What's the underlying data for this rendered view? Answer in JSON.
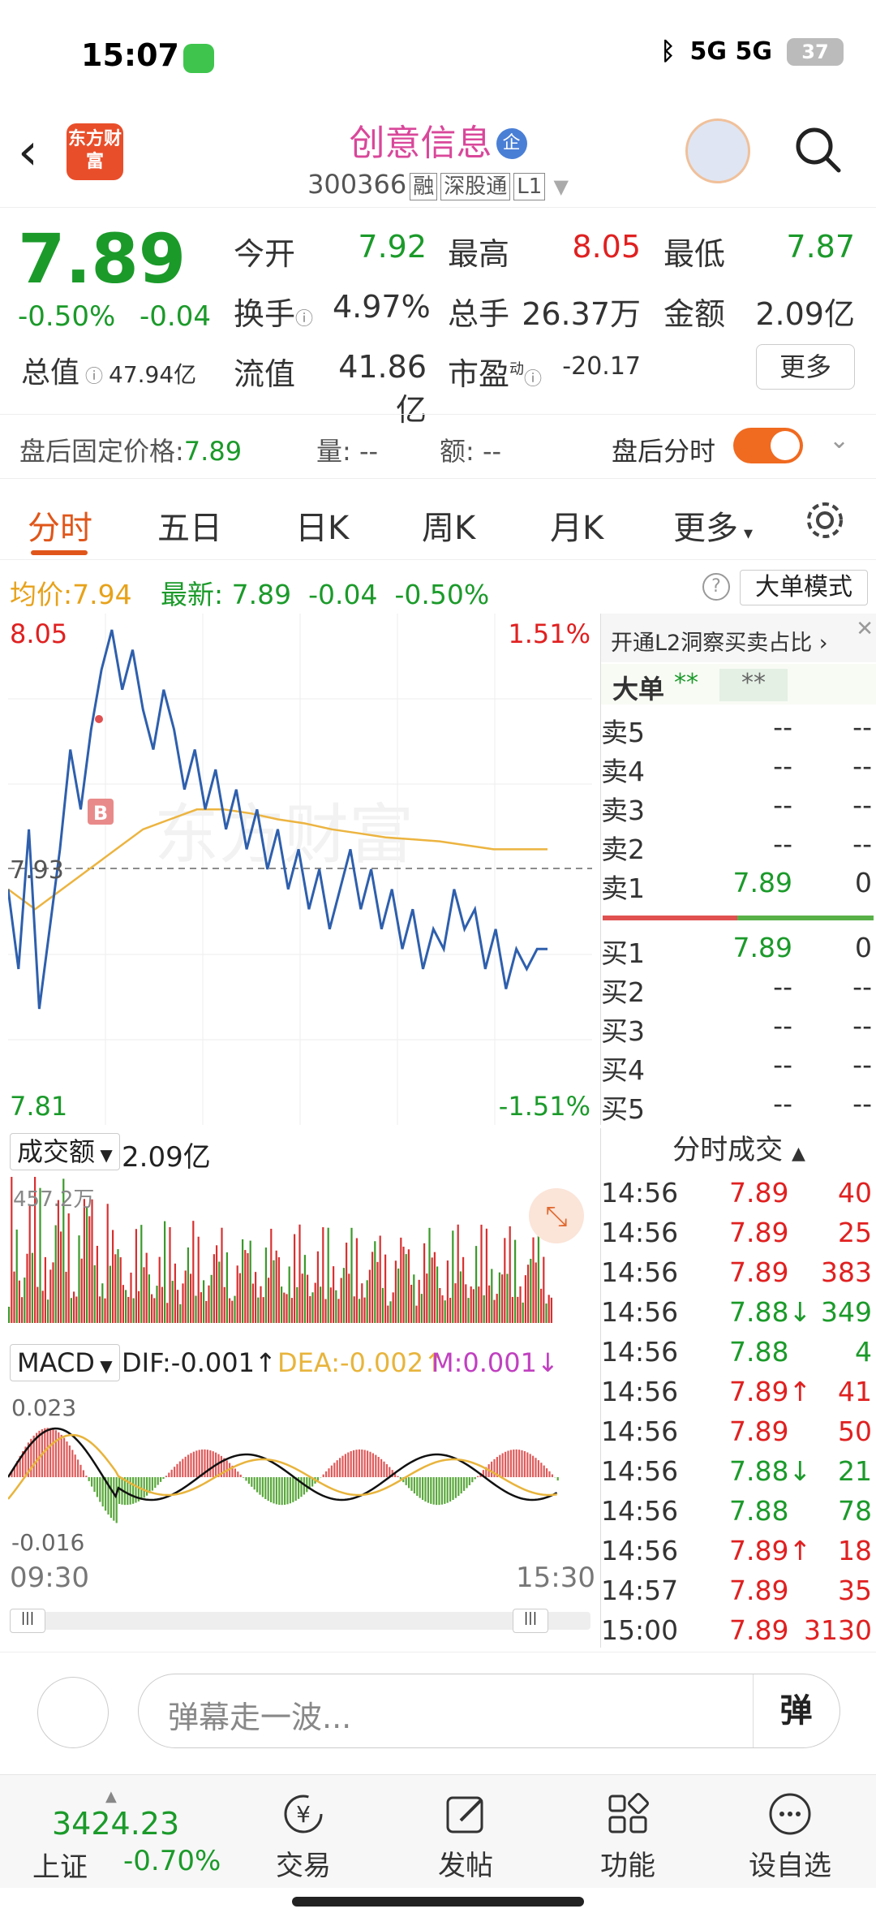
{
  "status_bar": {
    "time": "15:07",
    "signal": "5G 5G",
    "battery": "37"
  },
  "header": {
    "back_icon": "back-arrow-icon",
    "logo_text": "东方财富",
    "stock_name": "创意信息",
    "qi_badge": "企",
    "stock_code": "300366",
    "tags": [
      "融",
      "深股通",
      "L1"
    ],
    "search_icon": "search-icon"
  },
  "quote": {
    "price": "7.89",
    "change_pct": "-0.50%",
    "change": "-0.04",
    "open_label": "今开",
    "open": "7.92",
    "high_label": "最高",
    "high": "8.05",
    "low_label": "最低",
    "low": "7.87",
    "turnover_label": "换手",
    "turnover": "4.97%",
    "volume_label": "总手",
    "volume": "26.37万",
    "amount_label": "金额",
    "amount": "2.09亿",
    "mktcap_label": "总值",
    "mktcap": "47.94亿",
    "float_label": "流值",
    "float_cap": "41.86亿",
    "pe_label": "市盈",
    "pe_sup": "动",
    "pe": "-20.17",
    "more_button": "更多"
  },
  "after_hours": {
    "fixed_price_label": "盘后固定价格:",
    "fixed_price": "7.89",
    "vol_label": "量: --",
    "amt_label": "额: --",
    "toggle_label": "盘后分时"
  },
  "tabs": [
    "分时",
    "五日",
    "日K",
    "周K",
    "月K",
    "更多"
  ],
  "avg_line": {
    "avg_label": "均价:",
    "avg": "7.94",
    "last_label": "最新:",
    "last": "7.89",
    "chg": "-0.04",
    "chg_pct": "-0.50%",
    "big_order_mode": "大单模式"
  },
  "chart_labels": {
    "ymax": "8.05",
    "ymax_pct": "1.51%",
    "ymid": "7.93",
    "ymin": "7.81",
    "ymin_pct": "-1.51%",
    "buy_marker": "B",
    "watermark": "东方财富"
  },
  "chart_data": [
    {
      "type": "line",
      "y_range": [
        7.81,
        8.05
      ],
      "ref_price": 7.93,
      "series": [
        {
          "values": [
            7.92,
            7.88,
            7.95,
            7.86,
            7.9,
            7.94,
            7.99,
            7.96,
            8.0,
            8.03,
            8.05,
            8.02,
            8.04,
            8.01,
            7.99,
            8.02,
            8.0,
            7.97,
            7.99,
            7.96,
            7.98,
            7.95,
            7.97,
            7.94,
            7.96,
            7.93,
            7.95,
            7.92,
            7.94,
            7.91,
            7.93,
            7.9,
            7.92,
            7.94,
            7.91,
            7.93,
            7.9,
            7.92,
            7.89,
            7.91,
            7.88,
            7.9,
            7.89,
            7.92,
            7.9,
            7.91,
            7.88,
            7.9,
            7.87,
            7.89,
            7.88,
            7.89,
            7.89
          ]
        },
        {
          "values": [
            7.92,
            7.91,
            7.92,
            7.93,
            7.94,
            7.95,
            7.955,
            7.96,
            7.96,
            7.958,
            7.955,
            7.953,
            7.95,
            7.948,
            7.946,
            7.945,
            7.944,
            7.942,
            7.94,
            7.94,
            7.94
          ]
        }
      ]
    },
    {
      "type": "bar",
      "label": "成交额",
      "total": "2.09亿",
      "ymax_label": "457.2万"
    },
    {
      "type": "line",
      "label": "MACD",
      "ymax": "0.023",
      "ymin": "-0.016",
      "xstart": "09:30",
      "xend": "15:30"
    }
  ],
  "volume_panel": {
    "selector": "成交额",
    "value": "2.09亿",
    "ymax": "457.2万"
  },
  "macd_panel": {
    "selector": "MACD",
    "dif": "DIF:-0.001↑",
    "dea": "DEA:-0.002↑",
    "m": "M:0.001↓",
    "ymax": "0.023",
    "ymin": "-0.016",
    "xstart": "09:30",
    "xend": "15:30"
  },
  "orderbook": {
    "l2_link": "开通L2洞察买卖占比 ›",
    "big_label": "大单",
    "big_v1": "**",
    "big_v2": "**",
    "sells": [
      {
        "l": "卖5",
        "p": "--",
        "q": "--"
      },
      {
        "l": "卖4",
        "p": "--",
        "q": "--"
      },
      {
        "l": "卖3",
        "p": "--",
        "q": "--"
      },
      {
        "l": "卖2",
        "p": "--",
        "q": "--"
      },
      {
        "l": "卖1",
        "p": "7.89",
        "q": "0"
      }
    ],
    "buys": [
      {
        "l": "买1",
        "p": "7.89",
        "q": "0"
      },
      {
        "l": "买2",
        "p": "--",
        "q": "--"
      },
      {
        "l": "买3",
        "p": "--",
        "q": "--"
      },
      {
        "l": "买4",
        "p": "--",
        "q": "--"
      },
      {
        "l": "买5",
        "p": "--",
        "q": "--"
      }
    ]
  },
  "trades": {
    "title": "分时成交",
    "rows": [
      {
        "t": "14:56",
        "p": "7.89",
        "q": "40",
        "c": "red"
      },
      {
        "t": "14:56",
        "p": "7.89",
        "q": "25",
        "c": "red"
      },
      {
        "t": "14:56",
        "p": "7.89",
        "q": "383",
        "c": "red"
      },
      {
        "t": "14:56",
        "p": "7.88↓",
        "q": "349",
        "c": "green"
      },
      {
        "t": "14:56",
        "p": "7.88",
        "q": "4",
        "c": "green"
      },
      {
        "t": "14:56",
        "p": "7.89↑",
        "q": "41",
        "c": "red"
      },
      {
        "t": "14:56",
        "p": "7.89",
        "q": "50",
        "c": "red"
      },
      {
        "t": "14:56",
        "p": "7.88↓",
        "q": "21",
        "c": "green"
      },
      {
        "t": "14:56",
        "p": "7.88",
        "q": "78",
        "c": "green"
      },
      {
        "t": "14:56",
        "p": "7.89↑",
        "q": "18",
        "c": "red"
      },
      {
        "t": "14:57",
        "p": "7.89",
        "q": "35",
        "c": "red"
      },
      {
        "t": "15:00",
        "p": "7.89",
        "q": "3130",
        "c": "red"
      }
    ]
  },
  "danmu": {
    "placeholder": "弹幕走一波...",
    "button": "弹"
  },
  "bottom_nav": {
    "index_value": "3424.23",
    "index_name": "上证",
    "index_chg": "-0.70%",
    "items": [
      "交易",
      "发帖",
      "功能",
      "设自选"
    ]
  }
}
